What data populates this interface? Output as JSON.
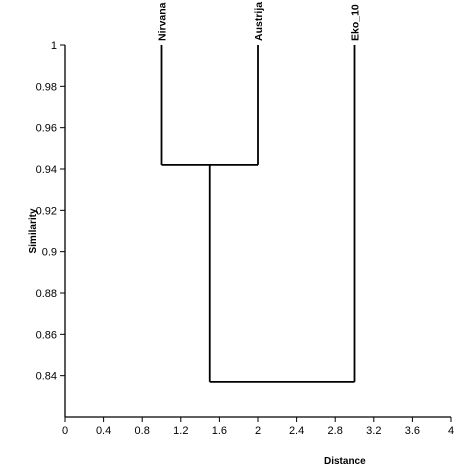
{
  "chart_data": {
    "type": "dendrogram",
    "xlabel": "Distance",
    "ylabel": "Similarity",
    "xlim": [
      0,
      4
    ],
    "ylim": [
      0.82,
      1.0
    ],
    "xticks": [
      "0",
      "0.4",
      "0.8",
      "1.2",
      "1.6",
      "2",
      "2.4",
      "2.8",
      "3.2",
      "3.6",
      "4"
    ],
    "yticks": [
      "0.84",
      "0.86",
      "0.88",
      "0.9",
      "0.92",
      "0.94",
      "0.96",
      "0.98",
      "1"
    ],
    "grid": false,
    "leaves": [
      {
        "label": "Nirvana",
        "x": 1
      },
      {
        "label": "Austrija",
        "x": 2
      },
      {
        "label": "Eko_10",
        "x": 3
      }
    ],
    "merges": [
      {
        "left": "Nirvana",
        "right": "Austrija",
        "similarity": 0.942
      },
      {
        "left": "Nirvana+Austrija",
        "right": "Eko_10",
        "similarity": 0.837
      }
    ],
    "line_color": "#000000"
  }
}
